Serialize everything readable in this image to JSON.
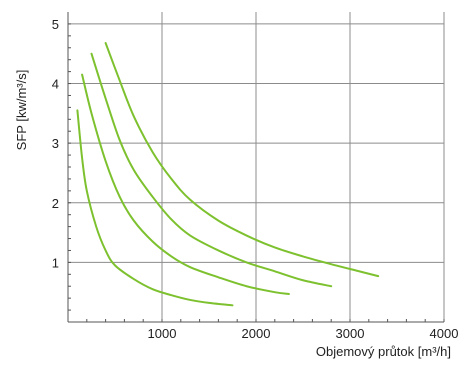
{
  "chart_data": {
    "type": "line",
    "title": "",
    "xlabel": "Objemový průtok [m³/h]",
    "ylabel": "SFP [kw/m³/s]",
    "xlim": [
      0,
      4000
    ],
    "ylim": [
      0,
      5.2
    ],
    "x_ticks": [
      "1000",
      "2000",
      "3000",
      "4000"
    ],
    "y_ticks": [
      "1",
      "2",
      "3",
      "4",
      "5"
    ],
    "grid": "horizontal and vertical at major ticks",
    "line_color": "#7dc12f",
    "series": [
      {
        "x": [
          100,
          150,
          200,
          300,
          400,
          500,
          700,
          900,
          1100,
          1300,
          1500,
          1750
        ],
        "y": [
          3.55,
          2.75,
          2.2,
          1.6,
          1.2,
          0.95,
          0.72,
          0.55,
          0.45,
          0.37,
          0.32,
          0.28
        ]
      },
      {
        "x": [
          150,
          250,
          400,
          550,
          700,
          900,
          1100,
          1300,
          1600,
          1900,
          2200,
          2350
        ],
        "y": [
          4.15,
          3.5,
          2.7,
          2.1,
          1.7,
          1.35,
          1.1,
          0.92,
          0.75,
          0.6,
          0.5,
          0.47
        ]
      },
      {
        "x": [
          250,
          400,
          550,
          700,
          900,
          1100,
          1300,
          1600,
          1900,
          2200,
          2500,
          2800
        ],
        "y": [
          4.5,
          3.75,
          3.05,
          2.55,
          2.1,
          1.72,
          1.45,
          1.2,
          1.0,
          0.85,
          0.7,
          0.6
        ]
      },
      {
        "x": [
          400,
          550,
          700,
          900,
          1100,
          1300,
          1600,
          1900,
          2200,
          2500,
          2800,
          3100,
          3300
        ],
        "y": [
          4.68,
          4.05,
          3.45,
          2.85,
          2.4,
          2.05,
          1.7,
          1.45,
          1.25,
          1.1,
          0.97,
          0.85,
          0.77
        ]
      }
    ]
  }
}
